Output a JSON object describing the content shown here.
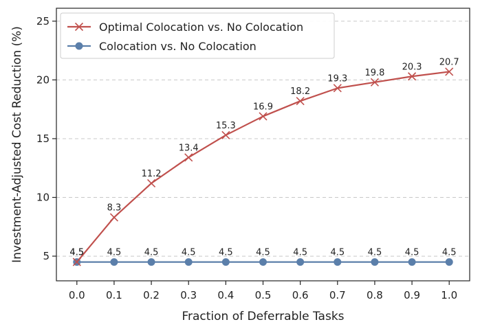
{
  "chart_data": {
    "type": "line",
    "title": "",
    "xlabel": "Fraction of Deferrable Tasks",
    "ylabel": "Investment-Adjusted Cost Reduction (%)",
    "x": [
      0.0,
      0.1,
      0.2,
      0.3,
      0.4,
      0.5,
      0.6,
      0.7,
      0.8,
      0.9,
      1.0
    ],
    "x_tick_labels": [
      "0.0",
      "0.1",
      "0.2",
      "0.3",
      "0.4",
      "0.5",
      "0.6",
      "0.7",
      "0.8",
      "0.9",
      "1.0"
    ],
    "y_ticks": [
      5,
      10,
      15,
      20,
      25
    ],
    "y_tick_labels": [
      "5",
      "10",
      "15",
      "20",
      "25"
    ],
    "xlim": [
      -0.055,
      1.055
    ],
    "ylim": [
      2.9,
      26.1
    ],
    "grid": "horizontal-dashed",
    "legend_position": "top-left",
    "series": [
      {
        "name": "Optimal Colocation vs. No Colocation",
        "color": "#c0504d",
        "marker": "x",
        "values": [
          4.5,
          8.3,
          11.2,
          13.4,
          15.3,
          16.9,
          18.2,
          19.3,
          19.8,
          20.3,
          20.7
        ],
        "labels": [
          "4.5",
          "8.3",
          "11.2",
          "13.4",
          "15.3",
          "16.9",
          "18.2",
          "19.3",
          "19.8",
          "20.3",
          "20.7"
        ]
      },
      {
        "name": "Colocation vs. No Colocation",
        "color": "#5b7faa",
        "marker": "circle",
        "values": [
          4.5,
          4.5,
          4.5,
          4.5,
          4.5,
          4.5,
          4.5,
          4.5,
          4.5,
          4.5,
          4.5
        ],
        "labels": [
          "4.5",
          "4.5",
          "4.5",
          "4.5",
          "4.5",
          "4.5",
          "4.5",
          "4.5",
          "4.5",
          "4.5",
          "4.5"
        ]
      }
    ]
  }
}
